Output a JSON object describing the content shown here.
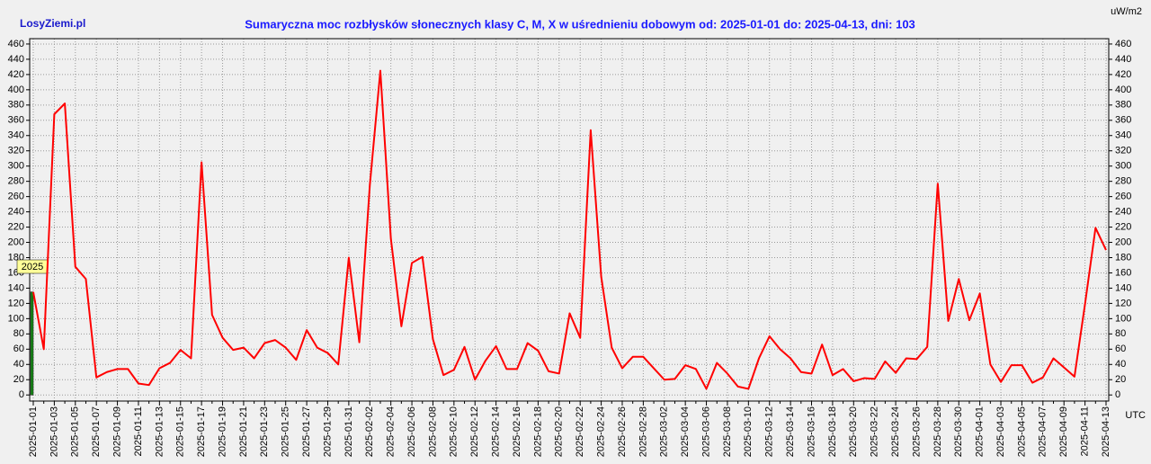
{
  "chart_data": {
    "type": "line",
    "title": "Sumaryczna moc rozbłysków słonecznych klasy C, M, X w uśrednieniu dobowym od: 2025-01-01 do: 2025-04-13, dni: 103",
    "brand": "LosyZiemi.pl",
    "y_unit": "uW/m2",
    "x_unit": "UTC",
    "year_label": "2025",
    "categories": [
      "2025-01-01",
      null,
      "2025-01-03",
      null,
      "2025-01-05",
      null,
      "2025-01-07",
      null,
      "2025-01-09",
      null,
      "2025-01-11",
      null,
      "2025-01-13",
      null,
      "2025-01-15",
      null,
      "2025-01-17",
      null,
      "2025-01-19",
      null,
      "2025-01-21",
      null,
      "2025-01-23",
      null,
      "2025-01-25",
      null,
      "2025-01-27",
      null,
      "2025-01-29",
      null,
      "2025-01-31",
      null,
      "2025-02-02",
      null,
      "2025-02-04",
      null,
      "2025-02-06",
      null,
      "2025-02-08",
      null,
      "2025-02-10",
      null,
      "2025-02-12",
      null,
      "2025-02-14",
      null,
      "2025-02-16",
      null,
      "2025-02-18",
      null,
      "2025-02-20",
      null,
      "2025-02-22",
      null,
      "2025-02-24",
      null,
      "2025-02-26",
      null,
      "2025-02-28",
      null,
      "2025-03-02",
      null,
      "2025-03-04",
      null,
      "2025-03-06",
      null,
      "2025-03-08",
      null,
      "2025-03-10",
      null,
      "2025-03-12",
      null,
      "2025-03-14",
      null,
      "2025-03-16",
      null,
      "2025-03-18",
      null,
      "2025-03-20",
      null,
      "2025-03-22",
      null,
      "2025-03-24",
      null,
      "2025-03-26",
      null,
      "2025-03-28",
      null,
      "2025-03-30",
      null,
      "2025-04-01",
      null,
      "2025-04-03",
      null,
      "2025-04-05",
      null,
      "2025-04-07",
      null,
      "2025-04-09",
      null,
      "2025-04-11",
      null,
      "2025-04-13"
    ],
    "series": [
      {
        "name": "moc",
        "color": "#ff0000",
        "values": [
          135,
          60,
          368,
          382,
          168,
          152,
          23,
          30,
          34,
          34,
          15,
          13,
          35,
          42,
          59,
          48,
          305,
          105,
          75,
          59,
          62,
          48,
          68,
          72,
          62,
          46,
          85,
          62,
          55,
          40,
          180,
          69,
          275,
          425,
          205,
          90,
          173,
          181,
          73,
          26,
          33,
          63,
          20,
          45,
          64,
          34,
          34,
          68,
          58,
          31,
          28,
          107,
          75,
          347,
          155,
          62,
          35,
          50,
          50,
          35,
          20,
          21,
          39,
          34,
          8,
          42,
          28,
          11,
          8,
          48,
          77,
          60,
          48,
          30,
          28,
          66,
          26,
          34,
          18,
          22,
          21,
          44,
          29,
          48,
          47,
          63,
          277,
          97,
          152,
          98,
          133,
          40,
          17,
          39,
          39,
          16,
          23,
          48,
          36,
          24,
          119,
          219,
          190
        ]
      }
    ],
    "ylim": [
      -8,
      467
    ],
    "yticks": [
      0,
      20,
      40,
      60,
      80,
      100,
      120,
      140,
      160,
      180,
      200,
      220,
      240,
      260,
      280,
      300,
      320,
      340,
      360,
      380,
      400,
      420,
      440,
      460
    ],
    "grid": true
  }
}
